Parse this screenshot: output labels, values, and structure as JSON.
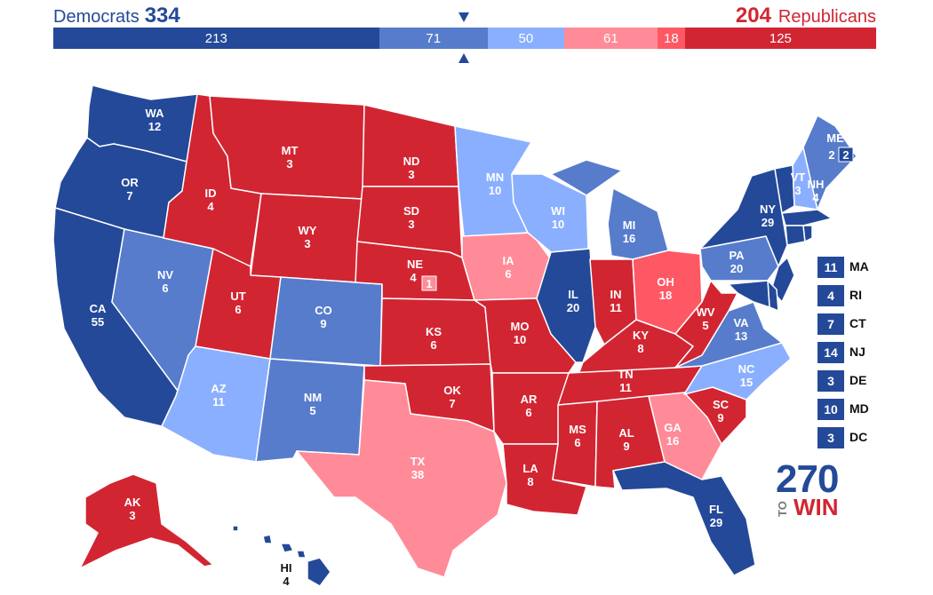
{
  "header": {
    "dem_label": "Democrats",
    "dem_total": "334",
    "rep_total": "204",
    "rep_label": "Republicans"
  },
  "bar_segments": [
    {
      "value": "213",
      "color": "#244999"
    },
    {
      "value": "71",
      "color": "#577ccc"
    },
    {
      "value": "50",
      "color": "#8aafff"
    },
    {
      "value": "61",
      "color": "#ff8b98"
    },
    {
      "value": "18",
      "color": "#ff5865"
    },
    {
      "value": "125",
      "color": "#d22532"
    }
  ],
  "colors": {
    "safe_dem": "#244999",
    "likely_dem": "#577ccc",
    "lean_dem": "#8aafff",
    "lean_rep": "#ff8b98",
    "likely_rep": "#ff5865",
    "safe_rep": "#d22532"
  },
  "states": [
    {
      "abbr": "WA",
      "ev": "12",
      "rating": "safe_dem"
    },
    {
      "abbr": "OR",
      "ev": "7",
      "rating": "safe_dem"
    },
    {
      "abbr": "CA",
      "ev": "55",
      "rating": "safe_dem"
    },
    {
      "abbr": "NV",
      "ev": "6",
      "rating": "likely_dem"
    },
    {
      "abbr": "ID",
      "ev": "4",
      "rating": "safe_rep"
    },
    {
      "abbr": "MT",
      "ev": "3",
      "rating": "safe_rep"
    },
    {
      "abbr": "WY",
      "ev": "3",
      "rating": "safe_rep"
    },
    {
      "abbr": "UT",
      "ev": "6",
      "rating": "safe_rep"
    },
    {
      "abbr": "AZ",
      "ev": "11",
      "rating": "lean_dem"
    },
    {
      "abbr": "CO",
      "ev": "9",
      "rating": "likely_dem"
    },
    {
      "abbr": "NM",
      "ev": "5",
      "rating": "likely_dem"
    },
    {
      "abbr": "ND",
      "ev": "3",
      "rating": "safe_rep"
    },
    {
      "abbr": "SD",
      "ev": "3",
      "rating": "safe_rep"
    },
    {
      "abbr": "NE",
      "ev": "4",
      "rating": "safe_rep"
    },
    {
      "abbr": "KS",
      "ev": "6",
      "rating": "safe_rep"
    },
    {
      "abbr": "OK",
      "ev": "7",
      "rating": "safe_rep"
    },
    {
      "abbr": "TX",
      "ev": "38",
      "rating": "lean_rep"
    },
    {
      "abbr": "MN",
      "ev": "10",
      "rating": "lean_dem"
    },
    {
      "abbr": "IA",
      "ev": "6",
      "rating": "lean_rep"
    },
    {
      "abbr": "MO",
      "ev": "10",
      "rating": "safe_rep"
    },
    {
      "abbr": "AR",
      "ev": "6",
      "rating": "safe_rep"
    },
    {
      "abbr": "LA",
      "ev": "8",
      "rating": "safe_rep"
    },
    {
      "abbr": "WI",
      "ev": "10",
      "rating": "lean_dem"
    },
    {
      "abbr": "IL",
      "ev": "20",
      "rating": "safe_dem"
    },
    {
      "abbr": "MI",
      "ev": "16",
      "rating": "likely_dem"
    },
    {
      "abbr": "IN",
      "ev": "11",
      "rating": "safe_rep"
    },
    {
      "abbr": "OH",
      "ev": "18",
      "rating": "likely_rep"
    },
    {
      "abbr": "KY",
      "ev": "8",
      "rating": "safe_rep"
    },
    {
      "abbr": "TN",
      "ev": "11",
      "rating": "safe_rep"
    },
    {
      "abbr": "MS",
      "ev": "6",
      "rating": "safe_rep"
    },
    {
      "abbr": "AL",
      "ev": "9",
      "rating": "safe_rep"
    },
    {
      "abbr": "GA",
      "ev": "16",
      "rating": "lean_rep"
    },
    {
      "abbr": "FL",
      "ev": "29",
      "rating": "safe_dem"
    },
    {
      "abbr": "SC",
      "ev": "9",
      "rating": "safe_rep"
    },
    {
      "abbr": "NC",
      "ev": "15",
      "rating": "lean_dem"
    },
    {
      "abbr": "VA",
      "ev": "13",
      "rating": "likely_dem"
    },
    {
      "abbr": "WV",
      "ev": "5",
      "rating": "safe_rep"
    },
    {
      "abbr": "PA",
      "ev": "20",
      "rating": "likely_dem"
    },
    {
      "abbr": "NY",
      "ev": "29",
      "rating": "safe_dem"
    },
    {
      "abbr": "VT",
      "ev": "3",
      "rating": "safe_dem"
    },
    {
      "abbr": "NH",
      "ev": "4",
      "rating": "lean_dem"
    },
    {
      "abbr": "ME",
      "ev": "2",
      "rating": "likely_dem"
    },
    {
      "abbr": "AK",
      "ev": "3",
      "rating": "safe_rep"
    },
    {
      "abbr": "HI",
      "ev": "4",
      "rating": "safe_dem"
    }
  ],
  "ne_district": "1",
  "me_district": "2",
  "small_states": [
    {
      "abbr": "MA",
      "ev": "11"
    },
    {
      "abbr": "RI",
      "ev": "4"
    },
    {
      "abbr": "CT",
      "ev": "7"
    },
    {
      "abbr": "NJ",
      "ev": "14"
    },
    {
      "abbr": "DE",
      "ev": "3"
    },
    {
      "abbr": "MD",
      "ev": "10"
    },
    {
      "abbr": "DC",
      "ev": "3"
    }
  ],
  "logo": {
    "number": "270",
    "to": "TO",
    "win": "WIN"
  }
}
